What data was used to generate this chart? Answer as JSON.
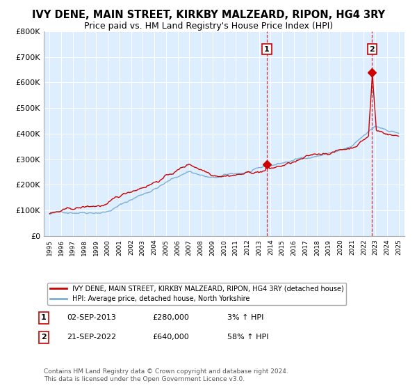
{
  "title": "IVY DENE, MAIN STREET, KIRKBY MALZEARD, RIPON, HG4 3RY",
  "subtitle": "Price paid vs. HM Land Registry's House Price Index (HPI)",
  "ylim": [
    0,
    800000
  ],
  "yticks": [
    0,
    100000,
    200000,
    300000,
    400000,
    500000,
    600000,
    700000,
    800000
  ],
  "ytick_labels": [
    "£0",
    "£100K",
    "£200K",
    "£300K",
    "£400K",
    "£500K",
    "£600K",
    "£700K",
    "£800K"
  ],
  "year_start": 1995,
  "year_end": 2025,
  "line1_color": "#cc0000",
  "line2_color": "#7bafd4",
  "background_color": "#ddeeff",
  "grid_color": "#ffffff",
  "sale1_year": 2013.67,
  "sale1_price": 280000,
  "sale2_year": 2022.72,
  "sale2_price": 640000,
  "legend1_label": "IVY DENE, MAIN STREET, KIRKBY MALZEARD, RIPON, HG4 3RY (detached house)",
  "legend2_label": "HPI: Average price, detached house, North Yorkshire",
  "note1_date": "02-SEP-2013",
  "note1_price": "£280,000",
  "note1_hpi": "3% ↑ HPI",
  "note2_date": "21-SEP-2022",
  "note2_price": "£640,000",
  "note2_hpi": "58% ↑ HPI",
  "copyright": "Contains HM Land Registry data © Crown copyright and database right 2024.\nThis data is licensed under the Open Government Licence v3.0."
}
